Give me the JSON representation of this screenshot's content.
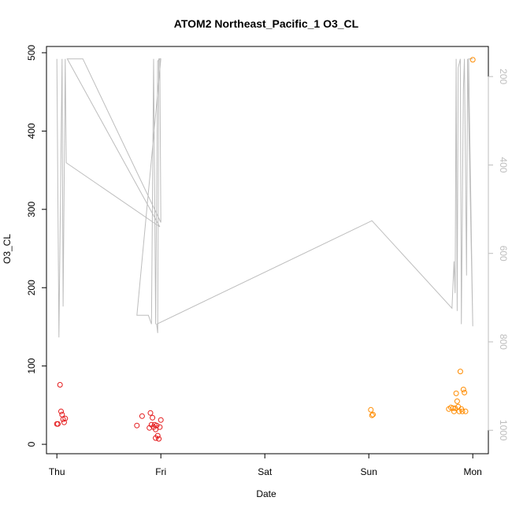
{
  "chart_data": {
    "type": "scatter",
    "title": "ATOM2 Northeast_Pacific_1 O3_CL",
    "xlabel": "Date",
    "ylabel": "O3_CL",
    "x_tick_labels": [
      "Thu",
      "Fri",
      "Sat",
      "Sun",
      "Mon"
    ],
    "x_axis_unit": "days",
    "xlim": [
      -0.1,
      4.15
    ],
    "ylim": [
      -12,
      508
    ],
    "yticks": [
      0,
      100,
      200,
      300,
      400,
      500
    ],
    "y2_axis": {
      "description": "secondary (right) axis, inverted",
      "ylim": [
        1053,
        132
      ],
      "ticks": [
        200,
        400,
        600,
        800,
        1000
      ],
      "color": "#bdbdbd"
    },
    "grid": false,
    "colors": {
      "early": "#e41a1c",
      "late": "#ff8c00",
      "line": "#bdbdbd"
    },
    "series": [
      {
        "color_key": "early",
        "points": [
          [
            0.0,
            26
          ],
          [
            0.01,
            26
          ],
          [
            0.03,
            76
          ],
          [
            0.04,
            42
          ],
          [
            0.05,
            38
          ],
          [
            0.06,
            32
          ],
          [
            0.07,
            28
          ],
          [
            0.08,
            33
          ],
          [
            0.77,
            24
          ],
          [
            0.82,
            36
          ],
          [
            0.89,
            21
          ],
          [
            0.9,
            40
          ],
          [
            0.91,
            25
          ],
          [
            0.92,
            34
          ],
          [
            0.93,
            22
          ],
          [
            0.94,
            25
          ],
          [
            0.95,
            19
          ],
          [
            0.95,
            8
          ],
          [
            0.96,
            24
          ],
          [
            0.97,
            11
          ],
          [
            0.98,
            7
          ],
          [
            0.99,
            22
          ],
          [
            1.0,
            31
          ]
        ]
      },
      {
        "color_key": "late",
        "points": [
          [
            3.02,
            44
          ],
          [
            3.03,
            37
          ],
          [
            3.04,
            38
          ],
          [
            3.77,
            45
          ],
          [
            3.79,
            47
          ],
          [
            3.81,
            46
          ],
          [
            3.82,
            42
          ],
          [
            3.83,
            46
          ],
          [
            3.84,
            65
          ],
          [
            3.85,
            55
          ],
          [
            3.86,
            48
          ],
          [
            3.87,
            42
          ],
          [
            3.88,
            93
          ],
          [
            3.89,
            45
          ],
          [
            3.9,
            42
          ],
          [
            3.91,
            70
          ],
          [
            3.92,
            66
          ],
          [
            3.93,
            42
          ],
          [
            4.0,
            491
          ]
        ]
      }
    ],
    "line_series": {
      "axis": "y2",
      "color_key": "line",
      "points": [
        [
          0.0,
          160
        ],
        [
          0.02,
          790
        ],
        [
          0.05,
          160
        ],
        [
          0.06,
          720
        ],
        [
          0.08,
          160
        ],
        [
          0.09,
          395
        ],
        [
          0.99,
          540
        ],
        [
          0.1,
          160
        ],
        [
          0.25,
          160
        ],
        [
          1.0,
          530
        ],
        [
          0.99,
          160
        ],
        [
          0.97,
          165
        ],
        [
          0.95,
          760
        ],
        [
          0.93,
          160
        ],
        [
          0.91,
          760
        ],
        [
          0.88,
          740
        ],
        [
          0.77,
          740
        ],
        [
          1.0,
          160
        ],
        [
          0.98,
          160
        ],
        [
          0.97,
          780
        ],
        [
          0.96,
          760
        ],
        [
          3.03,
          526
        ],
        [
          3.8,
          724
        ],
        [
          3.82,
          618
        ],
        [
          3.83,
          690
        ],
        [
          3.84,
          160
        ],
        [
          3.85,
          730
        ],
        [
          3.86,
          180
        ],
        [
          3.88,
          160
        ],
        [
          3.89,
          760
        ],
        [
          3.91,
          230
        ],
        [
          3.92,
          160
        ],
        [
          3.94,
          650
        ],
        [
          3.95,
          160
        ],
        [
          4.0,
          765
        ],
        [
          3.96,
          160
        ],
        [
          4.0,
          160
        ]
      ]
    }
  }
}
